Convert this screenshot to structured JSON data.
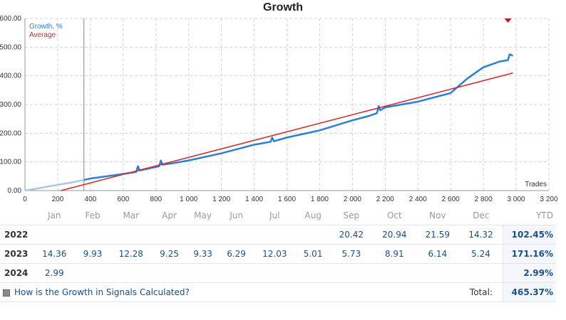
{
  "title": "Growth",
  "chart_data": {
    "type": "line",
    "title": "Growth",
    "xlabel": "Trades",
    "ylabel": "",
    "xlim": [
      0,
      3200
    ],
    "ylim": [
      0,
      600
    ],
    "xticks": [
      "0",
      "200",
      "400",
      "600",
      "800",
      "1 000",
      "1 200",
      "1 400",
      "1 600",
      "1 800",
      "2 000",
      "2 200",
      "2 400",
      "2 600",
      "2 800",
      "3 000",
      "3 200"
    ],
    "yticks": [
      "0.00",
      "100.00",
      "200.00",
      "300.00",
      "400.00",
      "500.00",
      "600.00"
    ],
    "grid": true,
    "legend_position": "top-left",
    "series": [
      {
        "name": "Growth, %",
        "color": "#2a7fd4",
        "x": [
          0,
          100,
          200,
          300,
          360,
          400,
          500,
          600,
          680,
          690,
          700,
          820,
          830,
          840,
          900,
          1000,
          1200,
          1400,
          1500,
          1510,
          1520,
          1600,
          1800,
          2000,
          2100,
          2150,
          2160,
          2170,
          2200,
          2400,
          2600,
          2700,
          2800,
          2900,
          2950,
          2960,
          2980
        ],
        "values": [
          0,
          10,
          20,
          30,
          37,
          42,
          50,
          58,
          65,
          85,
          70,
          85,
          105,
          90,
          95,
          105,
          130,
          160,
          170,
          185,
          172,
          185,
          210,
          245,
          260,
          270,
          295,
          280,
          290,
          310,
          340,
          390,
          430,
          450,
          455,
          475,
          470
        ]
      },
      {
        "name": "Average",
        "color": "#d42a2a",
        "x": [
          220,
          2980
        ],
        "values": [
          0,
          410
        ]
      }
    ],
    "annotations": [
      {
        "type": "vertical-line",
        "x": 360
      },
      {
        "type": "marker",
        "x": 2950,
        "y": 600,
        "color": "#b22222"
      }
    ]
  },
  "table": {
    "months": [
      "Jan",
      "Feb",
      "Mar",
      "Apr",
      "May",
      "Jun",
      "Jul",
      "Aug",
      "Sep",
      "Oct",
      "Nov",
      "Dec"
    ],
    "ytd_label": "YTD",
    "rows": [
      {
        "year": "2022",
        "cells": [
          "",
          "",
          "",
          "",
          "",
          "",
          "",
          "",
          "20.42",
          "20.94",
          "21.59",
          "14.32"
        ],
        "ytd": "102.45%"
      },
      {
        "year": "2023",
        "cells": [
          "14.36",
          "9.93",
          "12.28",
          "9.25",
          "9.33",
          "6.29",
          "12.03",
          "5.01",
          "5.73",
          "8.91",
          "6.14",
          "5.24"
        ],
        "ytd": "171.16%"
      },
      {
        "year": "2024",
        "cells": [
          "2.99",
          "",
          "",
          "",
          "",
          "",
          "",
          "",
          "",
          "",
          "",
          ""
        ],
        "ytd": "2.99%"
      }
    ],
    "footer": {
      "link_text": "How is the Growth in Signals Calculated?",
      "total_label": "Total:",
      "total_value": "465.37%"
    }
  }
}
